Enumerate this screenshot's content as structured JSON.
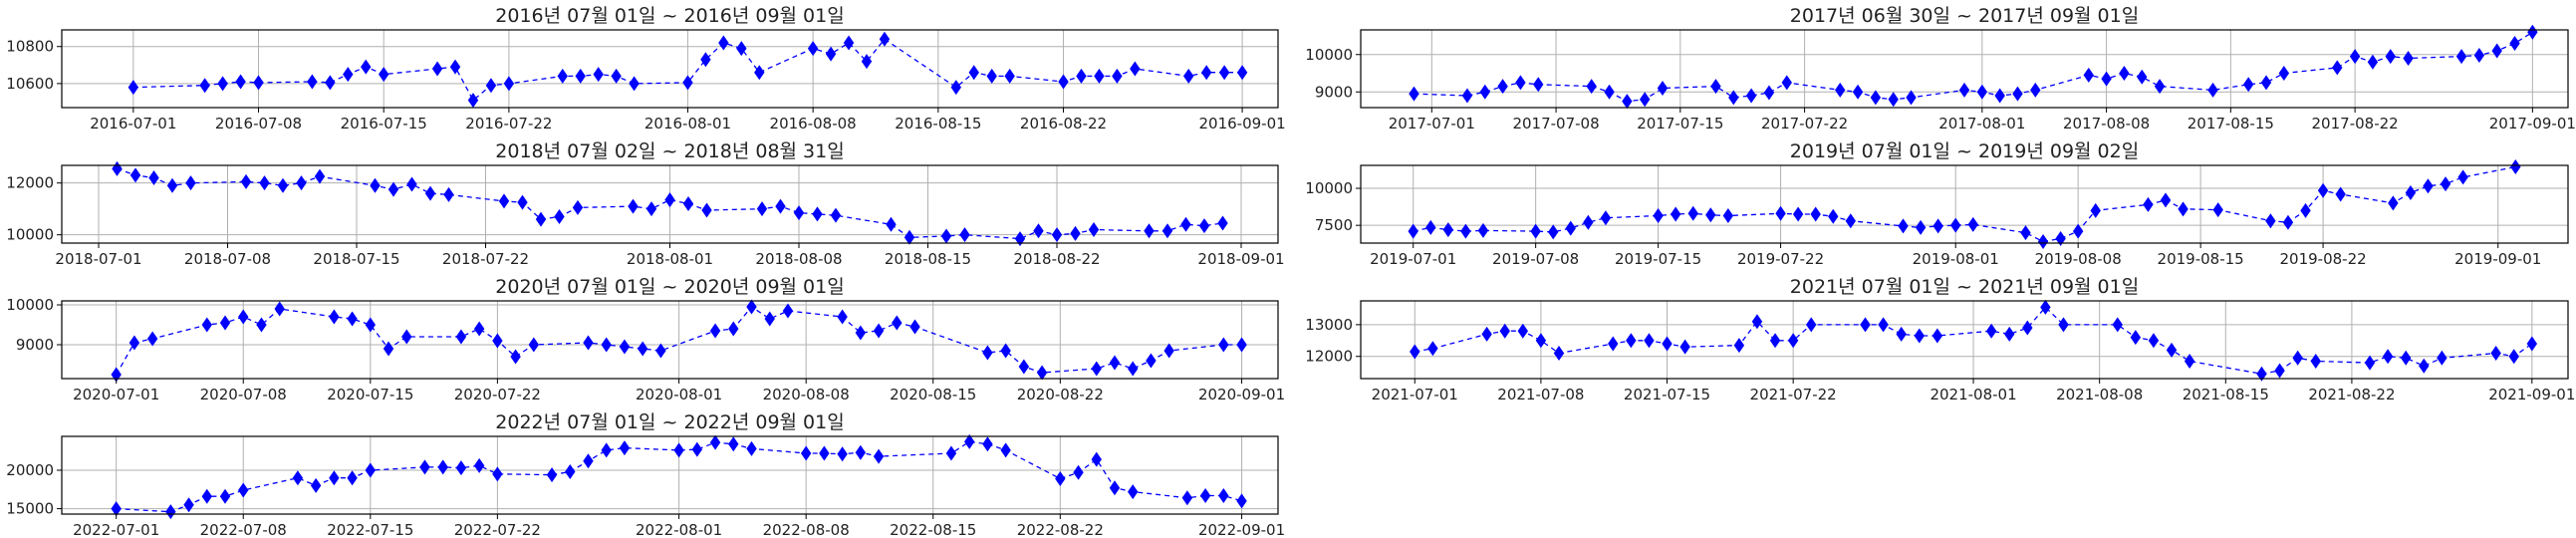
{
  "colors": {
    "marker": "#0000ff",
    "line": "#0000ff",
    "grid": "#b0b0b0"
  },
  "chart_data": [
    {
      "type": "line",
      "title": "2016년 07월 01일 ~ 2016년 09월 01일",
      "xlim": [
        "2016-06-27",
        "2016-09-03"
      ],
      "ylim": [
        10470,
        10890
      ],
      "xticks": [
        "2016-07-01",
        "2016-07-08",
        "2016-07-15",
        "2016-07-22",
        "2016-08-01",
        "2016-08-08",
        "2016-08-15",
        "2016-08-22",
        "2016-09-01"
      ],
      "yticks": [
        10600,
        10800
      ],
      "grid": true,
      "x": [
        "2016-07-01",
        "2016-07-05",
        "2016-07-06",
        "2016-07-07",
        "2016-07-08",
        "2016-07-11",
        "2016-07-12",
        "2016-07-13",
        "2016-07-14",
        "2016-07-15",
        "2016-07-18",
        "2016-07-19",
        "2016-07-20",
        "2016-07-21",
        "2016-07-22",
        "2016-07-25",
        "2016-07-26",
        "2016-07-27",
        "2016-07-28",
        "2016-07-29",
        "2016-08-01",
        "2016-08-02",
        "2016-08-03",
        "2016-08-04",
        "2016-08-05",
        "2016-08-08",
        "2016-08-09",
        "2016-08-10",
        "2016-08-11",
        "2016-08-12",
        "2016-08-16",
        "2016-08-17",
        "2016-08-18",
        "2016-08-19",
        "2016-08-22",
        "2016-08-23",
        "2016-08-24",
        "2016-08-25",
        "2016-08-26",
        "2016-08-29",
        "2016-08-30",
        "2016-08-31",
        "2016-09-01"
      ],
      "y": [
        10580,
        10590,
        10600,
        10610,
        10605,
        10610,
        10605,
        10650,
        10690,
        10650,
        10680,
        10690,
        10510,
        10590,
        10600,
        10640,
        10640,
        10650,
        10640,
        10600,
        10605,
        10730,
        10820,
        10790,
        10660,
        10790,
        10760,
        10820,
        10720,
        10840,
        10580,
        10660,
        10640,
        10640,
        10610,
        10640,
        10640,
        10640,
        10680,
        10640,
        10660,
        10660,
        10660
      ]
    },
    {
      "type": "line",
      "title": "2017년 06월 30일 ~ 2017년 09월 01일",
      "xlim": [
        "2017-06-27",
        "2017-09-03"
      ],
      "ylim": [
        8580,
        10660
      ],
      "xticks": [
        "2017-07-01",
        "2017-07-08",
        "2017-07-15",
        "2017-07-22",
        "2017-08-01",
        "2017-08-08",
        "2017-08-15",
        "2017-08-22",
        "2017-09-01"
      ],
      "yticks": [
        9000,
        10000
      ],
      "grid": true,
      "x": [
        "2017-06-30",
        "2017-07-03",
        "2017-07-04",
        "2017-07-05",
        "2017-07-06",
        "2017-07-07",
        "2017-07-10",
        "2017-07-11",
        "2017-07-12",
        "2017-07-13",
        "2017-07-14",
        "2017-07-17",
        "2017-07-18",
        "2017-07-19",
        "2017-07-20",
        "2017-07-21",
        "2017-07-24",
        "2017-07-25",
        "2017-07-26",
        "2017-07-27",
        "2017-07-28",
        "2017-07-31",
        "2017-08-01",
        "2017-08-02",
        "2017-08-03",
        "2017-08-04",
        "2017-08-07",
        "2017-08-08",
        "2017-08-09",
        "2017-08-10",
        "2017-08-11",
        "2017-08-14",
        "2017-08-16",
        "2017-08-17",
        "2017-08-18",
        "2017-08-21",
        "2017-08-22",
        "2017-08-23",
        "2017-08-24",
        "2017-08-25",
        "2017-08-28",
        "2017-08-29",
        "2017-08-30",
        "2017-08-31",
        "2017-09-01"
      ],
      "y": [
        8950,
        8900,
        9000,
        9150,
        9250,
        9200,
        9150,
        9000,
        8750,
        8800,
        9100,
        9150,
        8850,
        8900,
        8980,
        9250,
        9050,
        9000,
        8850,
        8800,
        8850,
        9050,
        9000,
        8900,
        8950,
        9050,
        9450,
        9350,
        9500,
        9400,
        9150,
        9050,
        9200,
        9250,
        9500,
        9650,
        9950,
        9800,
        9950,
        9900,
        9950,
        9980,
        10100,
        10300,
        10600
      ]
    },
    {
      "type": "line",
      "title": "2018년 07월 02일 ~ 2018년 08월 31일",
      "xlim": [
        "2018-06-29",
        "2018-09-03"
      ],
      "ylim": [
        9680,
        12680
      ],
      "xticks": [
        "2018-07-01",
        "2018-07-08",
        "2018-07-15",
        "2018-07-22",
        "2018-08-01",
        "2018-08-08",
        "2018-08-15",
        "2018-08-22",
        "2018-09-01"
      ],
      "yticks": [
        10000,
        12000
      ],
      "grid": true,
      "x": [
        "2018-07-02",
        "2018-07-03",
        "2018-07-04",
        "2018-07-05",
        "2018-07-06",
        "2018-07-09",
        "2018-07-10",
        "2018-07-11",
        "2018-07-12",
        "2018-07-13",
        "2018-07-16",
        "2018-07-17",
        "2018-07-18",
        "2018-07-19",
        "2018-07-20",
        "2018-07-23",
        "2018-07-24",
        "2018-07-25",
        "2018-07-26",
        "2018-07-27",
        "2018-07-30",
        "2018-07-31",
        "2018-08-01",
        "2018-08-02",
        "2018-08-03",
        "2018-08-06",
        "2018-08-07",
        "2018-08-08",
        "2018-08-09",
        "2018-08-10",
        "2018-08-13",
        "2018-08-14",
        "2018-08-16",
        "2018-08-17",
        "2018-08-20",
        "2018-08-21",
        "2018-08-22",
        "2018-08-23",
        "2018-08-24",
        "2018-08-27",
        "2018-08-28",
        "2018-08-29",
        "2018-08-30",
        "2018-08-31"
      ],
      "y": [
        12550,
        12300,
        12200,
        11900,
        12000,
        12050,
        12000,
        11900,
        12000,
        12250,
        11900,
        11750,
        11950,
        11600,
        11550,
        11300,
        11250,
        10600,
        10700,
        11050,
        11100,
        11000,
        11350,
        11200,
        10950,
        11000,
        11100,
        10850,
        10800,
        10750,
        10400,
        9900,
        9950,
        10000,
        9850,
        10150,
        10000,
        10050,
        10200,
        10150,
        10150,
        10400,
        10350,
        10450
      ]
    },
    {
      "type": "line",
      "title": "2019년 07월 01일 ~ 2019년 09월 02일",
      "xlim": [
        "2019-06-28",
        "2019-09-05"
      ],
      "ylim": [
        6300,
        11550
      ],
      "xticks": [
        "2019-07-01",
        "2019-07-08",
        "2019-07-15",
        "2019-07-22",
        "2019-08-01",
        "2019-08-08",
        "2019-08-15",
        "2019-08-22",
        "2019-09-01"
      ],
      "yticks": [
        7500,
        10000
      ],
      "grid": true,
      "x": [
        "2019-07-01",
        "2019-07-02",
        "2019-07-03",
        "2019-07-04",
        "2019-07-05",
        "2019-07-08",
        "2019-07-09",
        "2019-07-10",
        "2019-07-11",
        "2019-07-12",
        "2019-07-15",
        "2019-07-16",
        "2019-07-17",
        "2019-07-18",
        "2019-07-19",
        "2019-07-22",
        "2019-07-23",
        "2019-07-24",
        "2019-07-25",
        "2019-07-26",
        "2019-07-29",
        "2019-07-30",
        "2019-07-31",
        "2019-08-01",
        "2019-08-02",
        "2019-08-05",
        "2019-08-06",
        "2019-08-07",
        "2019-08-08",
        "2019-08-09",
        "2019-08-12",
        "2019-08-13",
        "2019-08-14",
        "2019-08-16",
        "2019-08-19",
        "2019-08-20",
        "2019-08-21",
        "2019-08-22",
        "2019-08-23",
        "2019-08-26",
        "2019-08-27",
        "2019-08-28",
        "2019-08-29",
        "2019-08-30",
        "2019-09-02"
      ],
      "y": [
        7100,
        7350,
        7200,
        7100,
        7150,
        7100,
        7050,
        7300,
        7700,
        8000,
        8150,
        8250,
        8300,
        8200,
        8150,
        8300,
        8250,
        8250,
        8100,
        7800,
        7450,
        7350,
        7450,
        7500,
        7550,
        7000,
        6400,
        6600,
        7100,
        8500,
        8900,
        9200,
        8600,
        8550,
        7800,
        7700,
        8500,
        9850,
        9600,
        9000,
        9700,
        10150,
        10300,
        10750,
        11450
      ]
    },
    {
      "type": "line",
      "title": "2020년 07월 01일 ~ 2020년 09월 01일",
      "xlim": [
        "2020-06-28",
        "2020-09-03"
      ],
      "ylim": [
        8150,
        10100
      ],
      "xticks": [
        "2020-07-01",
        "2020-07-08",
        "2020-07-15",
        "2020-07-22",
        "2020-08-01",
        "2020-08-08",
        "2020-08-15",
        "2020-08-22",
        "2020-09-01"
      ],
      "yticks": [
        9000,
        10000
      ],
      "grid": true,
      "x": [
        "2020-07-01",
        "2020-07-02",
        "2020-07-03",
        "2020-07-06",
        "2020-07-07",
        "2020-07-08",
        "2020-07-09",
        "2020-07-10",
        "2020-07-13",
        "2020-07-14",
        "2020-07-15",
        "2020-07-16",
        "2020-07-17",
        "2020-07-20",
        "2020-07-21",
        "2020-07-22",
        "2020-07-23",
        "2020-07-24",
        "2020-07-27",
        "2020-07-28",
        "2020-07-29",
        "2020-07-30",
        "2020-07-31",
        "2020-08-03",
        "2020-08-04",
        "2020-08-05",
        "2020-08-06",
        "2020-08-07",
        "2020-08-10",
        "2020-08-11",
        "2020-08-12",
        "2020-08-13",
        "2020-08-14",
        "2020-08-18",
        "2020-08-19",
        "2020-08-20",
        "2020-08-21",
        "2020-08-24",
        "2020-08-25",
        "2020-08-26",
        "2020-08-27",
        "2020-08-28",
        "2020-08-31",
        "2020-09-01"
      ],
      "y": [
        8250,
        9050,
        9150,
        9500,
        9550,
        9700,
        9500,
        9900,
        9700,
        9650,
        9500,
        8900,
        9200,
        9200,
        9400,
        9100,
        8700,
        9000,
        9050,
        9000,
        8950,
        8900,
        8850,
        9350,
        9400,
        9950,
        9650,
        9850,
        9700,
        9300,
        9350,
        9550,
        9450,
        8800,
        8850,
        8450,
        8300,
        8400,
        8550,
        8400,
        8600,
        8850,
        9000,
        9000
      ]
    },
    {
      "type": "line",
      "title": "2021년 07월 01일 ~ 2021년 09월 01일",
      "xlim": [
        "2021-06-28",
        "2021-09-03"
      ],
      "ylim": [
        11300,
        13750
      ],
      "xticks": [
        "2021-07-01",
        "2021-07-08",
        "2021-07-15",
        "2021-07-22",
        "2021-08-01",
        "2021-08-08",
        "2021-08-15",
        "2021-08-22",
        "2021-09-01"
      ],
      "yticks": [
        12000,
        13000
      ],
      "grid": true,
      "x": [
        "2021-07-01",
        "2021-07-02",
        "2021-07-05",
        "2021-07-06",
        "2021-07-07",
        "2021-07-08",
        "2021-07-09",
        "2021-07-12",
        "2021-07-13",
        "2021-07-14",
        "2021-07-15",
        "2021-07-16",
        "2021-07-19",
        "2021-07-20",
        "2021-07-21",
        "2021-07-22",
        "2021-07-23",
        "2021-07-26",
        "2021-07-27",
        "2021-07-28",
        "2021-07-29",
        "2021-07-30",
        "2021-08-02",
        "2021-08-03",
        "2021-08-04",
        "2021-08-05",
        "2021-08-06",
        "2021-08-09",
        "2021-08-10",
        "2021-08-11",
        "2021-08-12",
        "2021-08-13",
        "2021-08-17",
        "2021-08-18",
        "2021-08-19",
        "2021-08-20",
        "2021-08-23",
        "2021-08-24",
        "2021-08-25",
        "2021-08-26",
        "2021-08-27",
        "2021-08-30",
        "2021-08-31",
        "2021-09-01"
      ],
      "y": [
        12150,
        12250,
        12700,
        12800,
        12800,
        12500,
        12100,
        12400,
        12500,
        12500,
        12400,
        12300,
        12350,
        13100,
        12500,
        12500,
        13000,
        13000,
        13000,
        12700,
        12650,
        12650,
        12800,
        12700,
        12900,
        13550,
        13000,
        13000,
        12600,
        12500,
        12200,
        11850,
        11450,
        11550,
        11950,
        11850,
        11800,
        12000,
        11950,
        11700,
        11950,
        12100,
        12000,
        12400
      ]
    },
    {
      "type": "line",
      "title": "2022년 07월 01일 ~ 2022년 09월 01일",
      "xlim": [
        "2022-06-28",
        "2022-09-03"
      ],
      "ylim": [
        14300,
        24400
      ],
      "xticks": [
        "2022-07-01",
        "2022-07-08",
        "2022-07-15",
        "2022-07-22",
        "2022-08-01",
        "2022-08-08",
        "2022-08-15",
        "2022-08-22",
        "2022-09-01"
      ],
      "yticks": [
        15000,
        20000
      ],
      "grid": true,
      "x": [
        "2022-07-01",
        "2022-07-04",
        "2022-07-05",
        "2022-07-06",
        "2022-07-07",
        "2022-07-08",
        "2022-07-11",
        "2022-07-12",
        "2022-07-13",
        "2022-07-14",
        "2022-07-15",
        "2022-07-18",
        "2022-07-19",
        "2022-07-20",
        "2022-07-21",
        "2022-07-22",
        "2022-07-25",
        "2022-07-26",
        "2022-07-27",
        "2022-07-28",
        "2022-07-29",
        "2022-08-01",
        "2022-08-02",
        "2022-08-03",
        "2022-08-04",
        "2022-08-05",
        "2022-08-08",
        "2022-08-09",
        "2022-08-10",
        "2022-08-11",
        "2022-08-12",
        "2022-08-16",
        "2022-08-17",
        "2022-08-18",
        "2022-08-19",
        "2022-08-22",
        "2022-08-23",
        "2022-08-24",
        "2022-08-25",
        "2022-08-26",
        "2022-08-29",
        "2022-08-30",
        "2022-08-31",
        "2022-09-01"
      ],
      "y": [
        15000,
        14600,
        15500,
        16600,
        16600,
        17400,
        19000,
        18000,
        19000,
        19000,
        20000,
        20400,
        20400,
        20300,
        20600,
        19500,
        19400,
        19800,
        21200,
        22600,
        22900,
        22600,
        22700,
        23600,
        23400,
        22800,
        22200,
        22200,
        22100,
        22300,
        21800,
        22200,
        23700,
        23400,
        22600,
        18900,
        19700,
        21400,
        17700,
        17200,
        16400,
        16700,
        16700,
        16000
      ]
    }
  ]
}
